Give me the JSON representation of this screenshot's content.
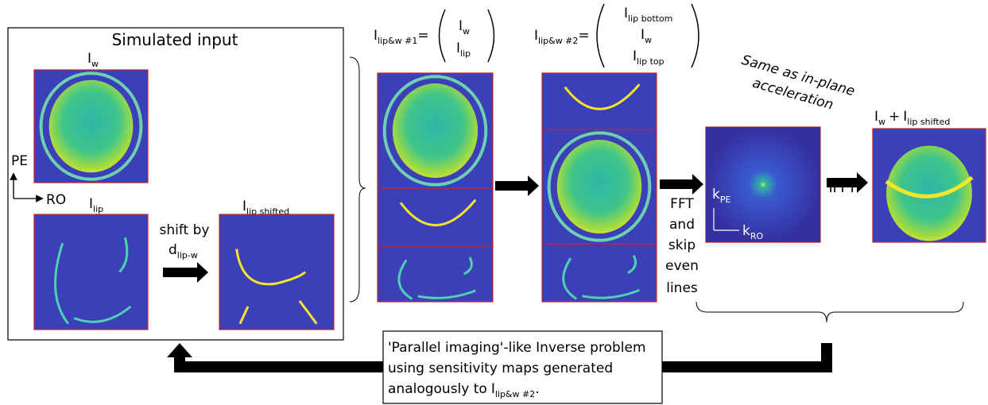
{
  "input_panel": {
    "title": "Simulated input",
    "water": {
      "main": "I",
      "sub": "w"
    },
    "lipid": {
      "main": "I",
      "sub": "lip"
    },
    "lipid_shifted": {
      "main": "I",
      "sub": "lip shifted"
    },
    "axes": {
      "pe": "PE",
      "ro": "RO"
    }
  },
  "shift": {
    "line1": "shift by",
    "symbol": {
      "main": "d",
      "sub": "lip-w"
    }
  },
  "stack1": {
    "label": {
      "main": "I",
      "sub": "lip&w #1",
      "eq": "="
    },
    "rows": [
      {
        "main": "I",
        "sub": "w"
      },
      {
        "main": "I",
        "sub": "lip"
      }
    ]
  },
  "stack2": {
    "label": {
      "main": "I",
      "sub": "lip&w #2",
      "eq": "="
    },
    "rows": [
      {
        "main": "I",
        "sub": "lip bottom"
      },
      {
        "main": "I",
        "sub": "w"
      },
      {
        "main": "I",
        "sub": "lip top"
      }
    ]
  },
  "fft_step": [
    "FFT",
    "and",
    "skip",
    "even",
    "lines"
  ],
  "kspace": {
    "ky": {
      "main": "k",
      "sub": "PE"
    },
    "kx": {
      "main": "k",
      "sub": "RO"
    }
  },
  "note": [
    "Same as in-plane",
    "acceleration"
  ],
  "ifft": "IFFT",
  "result": {
    "a": {
      "main": "I",
      "sub": "w"
    },
    "plus": "+",
    "b": {
      "main": "I",
      "sub": "lip shifted"
    }
  },
  "inverse_problem": {
    "lines": [
      "'Parallel imaging'-like Inverse problem",
      "using sensitivity maps generated"
    ],
    "last": {
      "text": "analogously to",
      "main": "I",
      "sub": "lip&w #2",
      "end": "."
    }
  }
}
